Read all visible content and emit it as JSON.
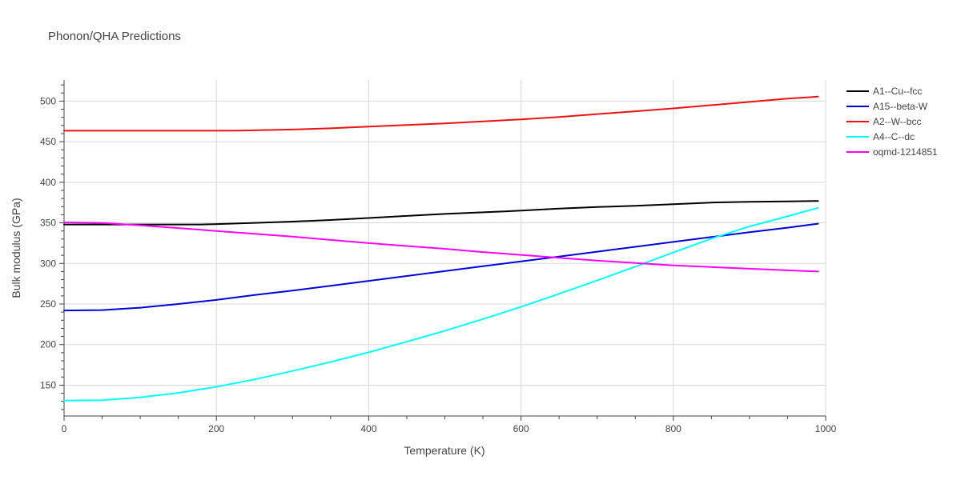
{
  "chart_data": {
    "type": "line",
    "title": "Phonon/QHA Predictions",
    "xlabel": "Temperature (K)",
    "ylabel": "Bulk modulus (GPa)",
    "xlim": [
      0,
      1000
    ],
    "ylim": [
      112,
      526
    ],
    "x_ticks": [
      0,
      200,
      400,
      600,
      800,
      1000
    ],
    "y_ticks": [
      150,
      200,
      250,
      300,
      350,
      400,
      450,
      500
    ],
    "grid": true,
    "legend_position": "top-right",
    "series": [
      {
        "name": "A1--Cu--fcc",
        "color": "#000000",
        "x": [
          0,
          50,
          100,
          150,
          180,
          200,
          250,
          300,
          350,
          400,
          450,
          500,
          550,
          600,
          650,
          700,
          750,
          800,
          850,
          900,
          950,
          990
        ],
        "y": [
          348,
          348,
          348,
          348,
          348,
          348.5,
          350,
          351.5,
          353.5,
          356,
          358.5,
          361,
          363,
          365,
          367.5,
          369.5,
          371,
          373,
          375,
          376,
          376.5,
          377
        ]
      },
      {
        "name": "A15--beta-W",
        "color": "#0000dd",
        "x": [
          0,
          50,
          100,
          150,
          200,
          250,
          300,
          350,
          400,
          450,
          500,
          550,
          600,
          650,
          700,
          750,
          800,
          850,
          900,
          950,
          990
        ],
        "y": [
          242,
          242.5,
          245.5,
          250,
          255,
          261,
          266.5,
          272.5,
          278.5,
          284.5,
          290.5,
          296.5,
          302.5,
          308.5,
          314.5,
          320.5,
          326.5,
          332.5,
          338.5,
          344,
          349
        ]
      },
      {
        "name": "A2--W--bcc",
        "color": "#ee1111",
        "x": [
          0,
          100,
          200,
          230,
          300,
          350,
          400,
          450,
          500,
          550,
          600,
          650,
          700,
          750,
          800,
          850,
          900,
          950,
          990
        ],
        "y": [
          463.5,
          463.5,
          463.5,
          463.7,
          465,
          466.5,
          468.5,
          470.5,
          472.5,
          475,
          477.5,
          480.5,
          484,
          487.5,
          491,
          495,
          499,
          503,
          505.5
        ]
      },
      {
        "name": "A4--C--dc",
        "color": "#00ffff",
        "x": [
          0,
          50,
          100,
          150,
          200,
          250,
          300,
          350,
          400,
          450,
          500,
          550,
          600,
          650,
          700,
          750,
          800,
          850,
          900,
          950,
          990
        ],
        "y": [
          131,
          131.5,
          135,
          140.5,
          148,
          157,
          167.5,
          178.5,
          190.5,
          203.5,
          217,
          231.5,
          246.5,
          262.5,
          279,
          296,
          313.5,
          330.5,
          345.5,
          358,
          368.5
        ]
      },
      {
        "name": "oqmd-1214851",
        "color": "#ff00ff",
        "x": [
          0,
          50,
          100,
          150,
          200,
          250,
          300,
          350,
          400,
          450,
          500,
          550,
          600,
          650,
          700,
          750,
          800,
          850,
          900,
          950,
          990
        ],
        "y": [
          350.5,
          350,
          347,
          343.5,
          340,
          336.5,
          333,
          329,
          325,
          321.5,
          318,
          314,
          310.5,
          307,
          303.5,
          300.5,
          297.5,
          295.5,
          293.5,
          291.5,
          290
        ]
      }
    ]
  }
}
